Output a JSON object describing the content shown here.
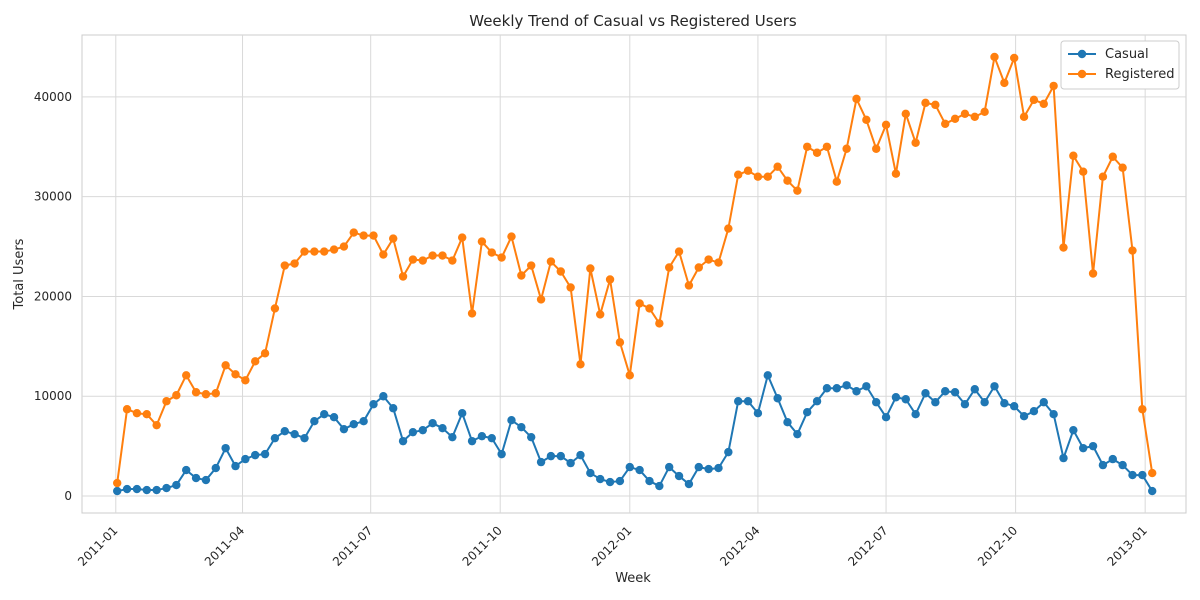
{
  "chart_data": {
    "type": "line",
    "title": "Weekly Trend of Casual vs Registered Users",
    "xlabel": "Week",
    "ylabel": "Total Users",
    "x_start": "2011-01-02",
    "x_step_days": 7,
    "xlim": [
      "2010-12-08",
      "2013-01-30"
    ],
    "ylim": [
      -1700,
      46200
    ],
    "x_ticks": [
      "2011-01",
      "2011-04",
      "2011-07",
      "2011-10",
      "2012-01",
      "2012-04",
      "2012-07",
      "2012-10",
      "2013-01"
    ],
    "y_ticks": [
      0,
      10000,
      20000,
      30000,
      40000
    ],
    "grid": true,
    "legend_position": "top-right",
    "series": [
      {
        "name": "Casual",
        "color": "#1f77b4",
        "values": [
          500,
          700,
          700,
          600,
          600,
          800,
          1100,
          2600,
          1800,
          1600,
          2800,
          4800,
          3000,
          3700,
          4100,
          4200,
          5800,
          6500,
          6200,
          5800,
          7500,
          8200,
          7900,
          6700,
          7200,
          7500,
          9200,
          10000,
          8800,
          5500,
          6400,
          6600,
          7300,
          6800,
          5900,
          8300,
          5500,
          6000,
          5800,
          4200,
          7600,
          6900,
          5900,
          3400,
          4000,
          4000,
          3300,
          4100,
          2300,
          1700,
          1400,
          1500,
          2900,
          2600,
          1500,
          1000,
          2900,
          2000,
          1200,
          2900,
          2700,
          2800,
          4400,
          9500,
          9500,
          8300,
          12100,
          9800,
          7400,
          6200,
          8400,
          9500,
          10800,
          10800,
          11100,
          10500,
          11000,
          9400,
          7900,
          9900,
          9700,
          8200,
          10300,
          9400,
          10500,
          10400,
          9200,
          10700,
          9400,
          11000,
          9300,
          9000,
          8000,
          8500,
          9400,
          8200,
          3800,
          6600,
          4800,
          5000,
          3100,
          3700,
          3100,
          2100,
          2100,
          500
        ]
      },
      {
        "name": "Registered",
        "color": "#ff7f0e",
        "values": [
          1300,
          8700,
          8300,
          8200,
          7100,
          9500,
          10100,
          12100,
          10400,
          10200,
          10300,
          13100,
          12200,
          11600,
          13500,
          14300,
          18800,
          23100,
          23300,
          24500,
          24500,
          24500,
          24700,
          25000,
          26400,
          26100,
          26100,
          24200,
          25800,
          22000,
          23700,
          23600,
          24100,
          24100,
          23600,
          25900,
          18300,
          25500,
          24400,
          23900,
          26000,
          22100,
          23100,
          19700,
          23500,
          22500,
          20900,
          13200,
          22800,
          18200,
          21700,
          15400,
          12100,
          19300,
          18800,
          17300,
          22900,
          24500,
          21100,
          22900,
          23700,
          23400,
          26800,
          32200,
          32600,
          32000,
          32000,
          33000,
          31600,
          30600,
          35000,
          34400,
          35000,
          31500,
          34800,
          39800,
          37700,
          34800,
          37200,
          32300,
          38300,
          35400,
          39400,
          39200,
          37300,
          37800,
          38300,
          38000,
          38500,
          44000,
          41400,
          43900,
          38000,
          39700,
          39300,
          41100,
          24900,
          34100,
          32500,
          22300,
          32000,
          34000,
          32900,
          24600,
          8700,
          2300
        ]
      }
    ]
  }
}
